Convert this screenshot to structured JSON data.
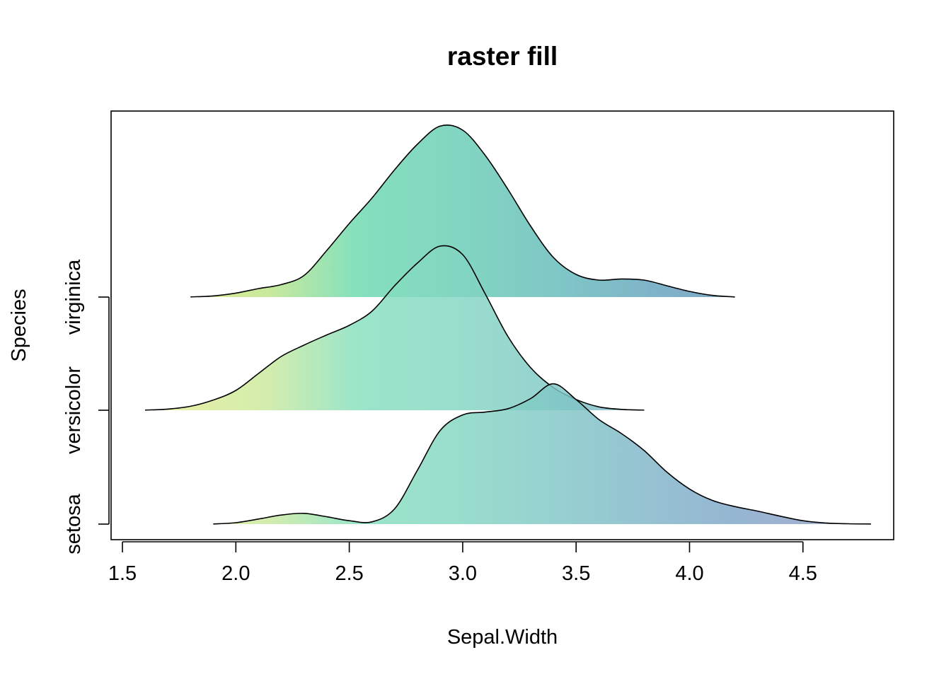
{
  "chart_data": {
    "type": "area",
    "title": "raster fill",
    "xlabel": "Sepal.Width",
    "ylabel": "Species",
    "xlim": [
      1.45,
      4.9
    ],
    "x_ticks": [
      "1.5",
      "2.0",
      "2.5",
      "3.0",
      "3.5",
      "4.0",
      "4.5"
    ],
    "x_tick_values": [
      1.5,
      2.0,
      2.5,
      3.0,
      3.5,
      4.0,
      4.5
    ],
    "categories": [
      "setosa",
      "versicolor",
      "virginica"
    ],
    "fill_colormap": [
      "#e6ec8d",
      "#c9e99c",
      "#85e0bd",
      "#82d4c2",
      "#7fc5c6",
      "#7fb4c8",
      "#7ea5c7",
      "#9c9dc7"
    ],
    "overlap_color": "#2f9fa5",
    "grid": false,
    "legend": "none",
    "series": [
      {
        "name": "setosa",
        "x": [
          1.9,
          2.0,
          2.1,
          2.2,
          2.3,
          2.4,
          2.5,
          2.6,
          2.7,
          2.8,
          2.9,
          3.0,
          3.1,
          3.2,
          3.3,
          3.4,
          3.5,
          3.6,
          3.7,
          3.8,
          3.9,
          4.0,
          4.1,
          4.2,
          4.3,
          4.4,
          4.5,
          4.6,
          4.7,
          4.8
        ],
        "y": [
          0.003,
          0.025,
          0.09,
          0.16,
          0.19,
          0.13,
          0.06,
          0.04,
          0.27,
          0.95,
          1.65,
          1.93,
          1.98,
          2.04,
          2.22,
          2.48,
          2.2,
          1.85,
          1.6,
          1.3,
          0.92,
          0.62,
          0.42,
          0.31,
          0.23,
          0.14,
          0.06,
          0.02,
          0.006,
          0.002
        ]
      },
      {
        "name": "versicolor",
        "x": [
          1.6,
          1.7,
          1.8,
          1.9,
          2.0,
          2.1,
          2.2,
          2.3,
          2.4,
          2.5,
          2.6,
          2.7,
          2.8,
          2.9,
          3.0,
          3.1,
          3.2,
          3.3,
          3.4,
          3.5,
          3.6,
          3.7,
          3.8
        ],
        "y": [
          0.003,
          0.02,
          0.07,
          0.18,
          0.35,
          0.65,
          0.95,
          1.15,
          1.33,
          1.5,
          1.75,
          2.2,
          2.6,
          2.9,
          2.75,
          2.05,
          1.3,
          0.75,
          0.4,
          0.19,
          0.06,
          0.015,
          0.002
        ]
      },
      {
        "name": "virginica",
        "x": [
          1.8,
          1.9,
          2.0,
          2.1,
          2.2,
          2.3,
          2.4,
          2.5,
          2.6,
          2.7,
          2.8,
          2.9,
          3.0,
          3.1,
          3.2,
          3.3,
          3.4,
          3.5,
          3.6,
          3.7,
          3.8,
          3.9,
          4.0,
          4.1,
          4.2
        ],
        "y": [
          0.003,
          0.02,
          0.07,
          0.15,
          0.22,
          0.38,
          0.82,
          1.3,
          1.75,
          2.25,
          2.7,
          3.02,
          2.95,
          2.5,
          1.9,
          1.25,
          0.7,
          0.4,
          0.3,
          0.32,
          0.3,
          0.2,
          0.1,
          0.03,
          0.003
        ]
      }
    ]
  }
}
